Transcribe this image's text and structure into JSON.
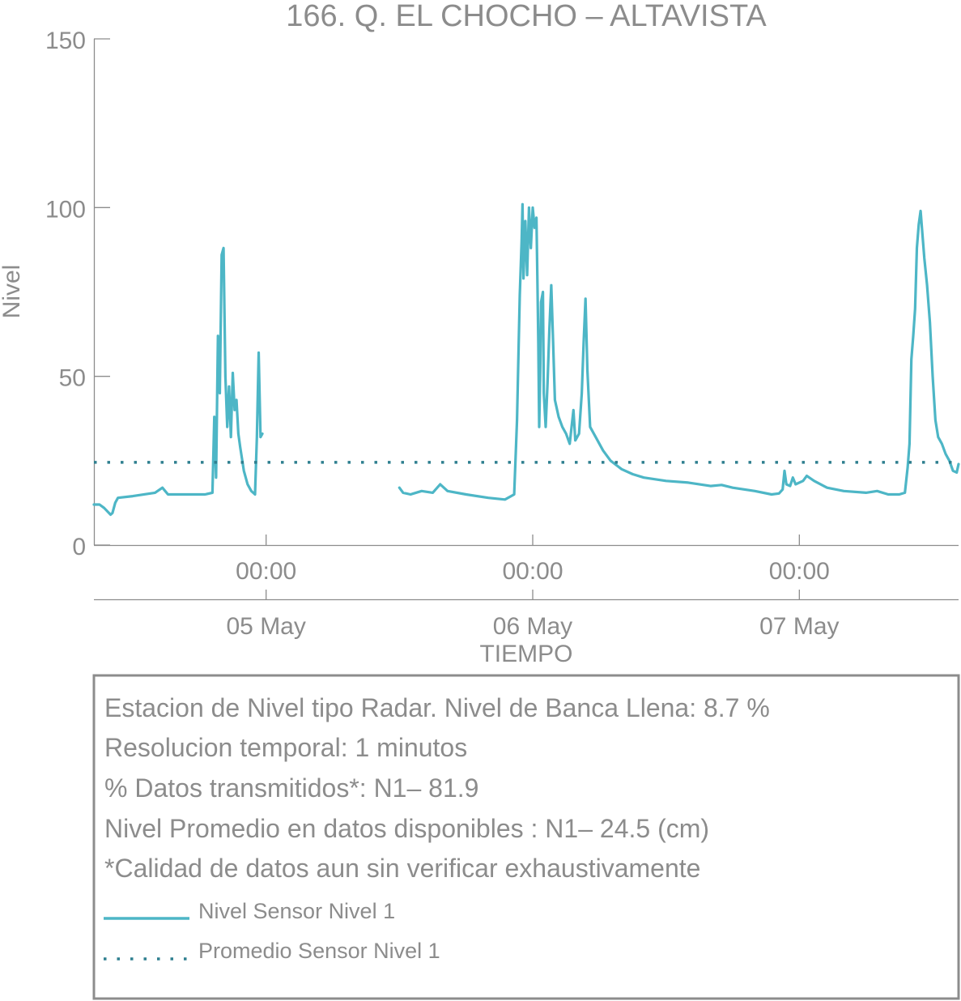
{
  "chart_data": {
    "type": "line",
    "title": "166. Q. EL CHOCHO – ALTAVISTA",
    "xlabel": "TIEMPO",
    "ylabel": "Nivel",
    "ylim": [
      0,
      150
    ],
    "yticks": [
      0,
      50,
      100,
      150
    ],
    "xlim": [
      "2023-05-04 08:30",
      "2023-05-07 14:20"
    ],
    "xticks": [
      {
        "time": "2023-05-05 00:00",
        "hour_label": "00:00",
        "date_label": "05 May"
      },
      {
        "time": "2023-05-06 00:00",
        "hour_label": "00:00",
        "date_label": "06 May"
      },
      {
        "time": "2023-05-07 00:00",
        "hour_label": "00:00",
        "date_label": "07 May"
      }
    ],
    "grid": false,
    "series": [
      {
        "name": "Nivel Sensor Nivel 1",
        "style": "solid",
        "color": "#4db6c6",
        "segments": [
          [
            [
              "2023-05-04 08:30",
              12.0
            ],
            [
              "2023-05-04 09:00",
              12.0
            ],
            [
              "2023-05-04 09:25",
              11.0
            ],
            [
              "2023-05-04 10:00",
              9.0
            ],
            [
              "2023-05-04 10:10",
              9.5
            ],
            [
              "2023-05-04 10:25",
              12.5
            ],
            [
              "2023-05-04 10:40",
              14.0
            ],
            [
              "2023-05-04 12:00",
              14.5
            ],
            [
              "2023-05-04 14:00",
              15.5
            ],
            [
              "2023-05-04 14:40",
              17.0
            ],
            [
              "2023-05-04 15:10",
              15.0
            ],
            [
              "2023-05-04 18:30",
              15.0
            ],
            [
              "2023-05-04 19:10",
              15.5
            ],
            [
              "2023-05-04 19:20",
              38.0
            ],
            [
              "2023-05-04 19:30",
              20.0
            ],
            [
              "2023-05-04 19:40",
              62.0
            ],
            [
              "2023-05-04 19:50",
              45.0
            ],
            [
              "2023-05-04 20:00",
              86.0
            ],
            [
              "2023-05-04 20:10",
              88.0
            ],
            [
              "2023-05-04 20:20",
              50.0
            ],
            [
              "2023-05-04 20:30",
              35.0
            ],
            [
              "2023-05-04 20:40",
              47.0
            ],
            [
              "2023-05-04 20:50",
              32.0
            ],
            [
              "2023-05-04 21:00",
              51.0
            ],
            [
              "2023-05-04 21:10",
              40.0
            ],
            [
              "2023-05-04 21:20",
              43.0
            ],
            [
              "2023-05-04 21:30",
              33.0
            ],
            [
              "2023-05-04 21:40",
              29.0
            ],
            [
              "2023-05-04 22:00",
              22.0
            ],
            [
              "2023-05-04 22:20",
              18.0
            ],
            [
              "2023-05-04 22:40",
              16.0
            ],
            [
              "2023-05-04 23:00",
              15.0
            ],
            [
              "2023-05-04 23:10",
              32.0
            ],
            [
              "2023-05-04 23:20",
              57.0
            ],
            [
              "2023-05-04 23:30",
              32.0
            ],
            [
              "2023-05-04 23:40",
              33.0
            ]
          ],
          [
            [
              "2023-05-05 12:00",
              17.0
            ],
            [
              "2023-05-05 12:20",
              15.5
            ],
            [
              "2023-05-05 13:00",
              15.0
            ],
            [
              "2023-05-05 14:00",
              16.0
            ],
            [
              "2023-05-05 15:00",
              15.5
            ],
            [
              "2023-05-05 15:40",
              18.0
            ],
            [
              "2023-05-05 16:20",
              16.0
            ],
            [
              "2023-05-05 18:00",
              15.0
            ],
            [
              "2023-05-05 20:00",
              14.0
            ],
            [
              "2023-05-05 21:30",
              13.5
            ],
            [
              "2023-05-05 22:20",
              15.0
            ],
            [
              "2023-05-05 22:35",
              37.0
            ],
            [
              "2023-05-05 22:50",
              74.0
            ],
            [
              "2023-05-05 23:00",
              90.0
            ],
            [
              "2023-05-05 23:05",
              101.0
            ],
            [
              "2023-05-05 23:10",
              79.0
            ],
            [
              "2023-05-05 23:20",
              96.0
            ],
            [
              "2023-05-05 23:30",
              80.0
            ],
            [
              "2023-05-05 23:40",
              100.0
            ],
            [
              "2023-05-05 23:50",
              88.0
            ],
            [
              "2023-05-06 00:00",
              100.0
            ],
            [
              "2023-05-06 00:10",
              94.0
            ],
            [
              "2023-05-06 00:20",
              97.0
            ],
            [
              "2023-05-06 00:25",
              80.0
            ],
            [
              "2023-05-06 00:30",
              60.0
            ],
            [
              "2023-05-06 00:35",
              35.0
            ],
            [
              "2023-05-06 00:40",
              50.0
            ],
            [
              "2023-05-06 00:45",
              72.0
            ],
            [
              "2023-05-06 00:55",
              75.0
            ],
            [
              "2023-05-06 01:00",
              45.0
            ],
            [
              "2023-05-06 01:10",
              35.0
            ],
            [
              "2023-05-06 01:20",
              48.0
            ],
            [
              "2023-05-06 01:30",
              64.0
            ],
            [
              "2023-05-06 01:40",
              77.0
            ],
            [
              "2023-05-06 01:50",
              60.0
            ],
            [
              "2023-05-06 02:00",
              43.0
            ],
            [
              "2023-05-06 02:20",
              38.0
            ],
            [
              "2023-05-06 02:40",
              35.0
            ],
            [
              "2023-05-06 03:00",
              33.0
            ],
            [
              "2023-05-06 03:20",
              30.0
            ],
            [
              "2023-05-06 03:40",
              40.0
            ],
            [
              "2023-05-06 03:50",
              31.0
            ],
            [
              "2023-05-06 04:10",
              33.0
            ],
            [
              "2023-05-06 04:25",
              45.0
            ],
            [
              "2023-05-06 04:35",
              60.0
            ],
            [
              "2023-05-06 04:45",
              73.0
            ],
            [
              "2023-05-06 04:55",
              52.0
            ],
            [
              "2023-05-06 05:10",
              35.0
            ],
            [
              "2023-05-06 05:40",
              32.0
            ],
            [
              "2023-05-06 06:20",
              28.0
            ],
            [
              "2023-05-06 07:00",
              25.0
            ],
            [
              "2023-05-06 08:00",
              22.5
            ],
            [
              "2023-05-06 09:00",
              21.0
            ],
            [
              "2023-05-06 10:00",
              20.0
            ],
            [
              "2023-05-06 12:00",
              19.0
            ],
            [
              "2023-05-06 14:00",
              18.5
            ],
            [
              "2023-05-06 16:00",
              17.5
            ],
            [
              "2023-05-06 17:00",
              17.8
            ],
            [
              "2023-05-06 18:00",
              17.0
            ],
            [
              "2023-05-06 20:00",
              16.0
            ],
            [
              "2023-05-06 21:30",
              15.0
            ],
            [
              "2023-05-06 22:10",
              15.3
            ],
            [
              "2023-05-06 22:30",
              16.5
            ],
            [
              "2023-05-06 22:40",
              22.0
            ],
            [
              "2023-05-06 22:50",
              18.0
            ],
            [
              "2023-05-06 23:10",
              17.5
            ],
            [
              "2023-05-06 23:25",
              20.0
            ],
            [
              "2023-05-06 23:40",
              18.0
            ],
            [
              "2023-05-07 00:20",
              19.0
            ],
            [
              "2023-05-07 00:40",
              20.5
            ],
            [
              "2023-05-07 01:20",
              19.0
            ],
            [
              "2023-05-07 02:30",
              17.0
            ],
            [
              "2023-05-07 04:00",
              16.0
            ],
            [
              "2023-05-07 06:00",
              15.5
            ],
            [
              "2023-05-07 07:00",
              16.0
            ],
            [
              "2023-05-07 08:00",
              15.0
            ],
            [
              "2023-05-07 09:00",
              15.0
            ],
            [
              "2023-05-07 09:30",
              15.5
            ],
            [
              "2023-05-07 09:45",
              23.0
            ],
            [
              "2023-05-07 09:55",
              30.0
            ],
            [
              "2023-05-07 10:05",
              55.0
            ],
            [
              "2023-05-07 10:15",
              62.0
            ],
            [
              "2023-05-07 10:25",
              70.0
            ],
            [
              "2023-05-07 10:35",
              88.0
            ],
            [
              "2023-05-07 10:45",
              95.0
            ],
            [
              "2023-05-07 10:55",
              99.0
            ],
            [
              "2023-05-07 11:05",
              92.0
            ],
            [
              "2023-05-07 11:15",
              85.0
            ],
            [
              "2023-05-07 11:30",
              77.0
            ],
            [
              "2023-05-07 11:45",
              66.0
            ],
            [
              "2023-05-07 12:00",
              50.0
            ],
            [
              "2023-05-07 12:15",
              37.0
            ],
            [
              "2023-05-07 12:30",
              32.0
            ],
            [
              "2023-05-07 12:50",
              30.0
            ],
            [
              "2023-05-07 13:10",
              27.0
            ],
            [
              "2023-05-07 13:30",
              25.0
            ],
            [
              "2023-05-07 13:50",
              22.0
            ],
            [
              "2023-05-07 14:10",
              21.5
            ],
            [
              "2023-05-07 14:20",
              24.0
            ]
          ]
        ]
      },
      {
        "name": "Promedio Sensor Nivel 1",
        "style": "dotted",
        "color": "#2e7f8f",
        "value": 24.5
      }
    ]
  },
  "legend": {
    "lines": [
      "Estacion de Nivel tipo Radar. Nivel de Banca Llena:  8.7 %",
      "Resolucion temporal: 1 minutos",
      "% Datos transmitidos*: N1– 81.9",
      "Nivel Promedio en datos disponibles : N1– 24.5 (cm)",
      "*Calidad de datos aun sin verificar exhaustivamente"
    ]
  },
  "colors": {
    "text": "#8c8c8c",
    "axis": "#8c8c8c",
    "frame": "#8c8c8c"
  }
}
